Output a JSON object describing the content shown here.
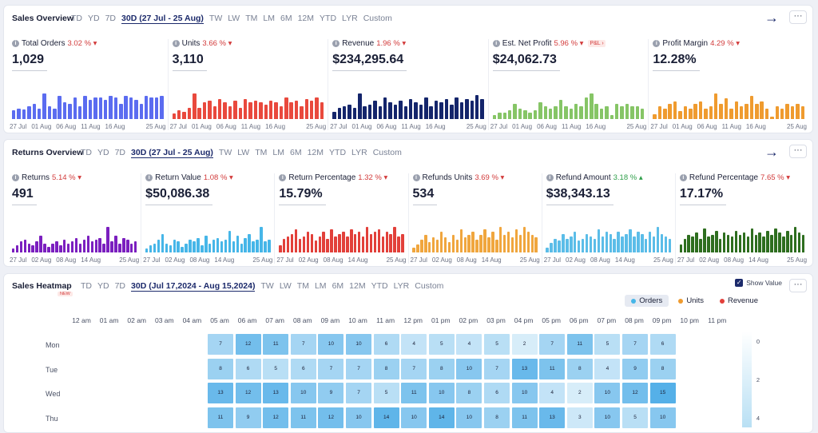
{
  "sales": {
    "title": "Sales Overview",
    "ranges": [
      "TD",
      "YD",
      "7D",
      "30D (27 Jul - 25 Aug)",
      "TW",
      "LW",
      "TM",
      "LM",
      "6M",
      "12M",
      "YTD",
      "LYR",
      "Custom"
    ],
    "active_range": 3,
    "arrow": "→",
    "more": "···",
    "x_ticks": [
      "27 Jul",
      "01 Aug",
      "06 Aug",
      "11 Aug",
      "16 Aug"
    ],
    "x_end": "25 Aug",
    "metrics": [
      {
        "label": "Total Orders",
        "change": "3.02 %",
        "dir": "down",
        "value": "1,029",
        "color": "#5b6cf0",
        "bars": [
          8,
          10,
          9,
          12,
          14,
          10,
          24,
          12,
          10,
          22,
          16,
          14,
          20,
          12,
          22,
          18,
          20,
          20,
          18,
          22,
          20,
          14,
          22,
          20,
          18,
          14,
          22,
          20,
          20,
          22
        ]
      },
      {
        "label": "Units",
        "change": "3.66 %",
        "dir": "down",
        "value": "3,110",
        "color": "#e9493d",
        "bars": [
          6,
          10,
          8,
          12,
          28,
          12,
          18,
          20,
          14,
          22,
          18,
          14,
          20,
          12,
          22,
          18,
          20,
          18,
          16,
          20,
          18,
          14,
          24,
          18,
          20,
          14,
          22,
          20,
          24,
          18
        ]
      },
      {
        "label": "Revenue",
        "change": "1.96 %",
        "dir": "down",
        "value": "$234,295.64",
        "color": "#14256b",
        "bars": [
          8,
          12,
          14,
          16,
          12,
          28,
          14,
          16,
          20,
          14,
          24,
          18,
          16,
          20,
          14,
          22,
          18,
          16,
          24,
          14,
          20,
          18,
          22,
          16,
          24,
          18,
          22,
          20,
          26,
          22
        ]
      },
      {
        "label": "Est. Net Profit",
        "change": "5.96 %",
        "dir": "down",
        "value": "$24,062.73",
        "color": "#86c566",
        "bars": [
          4,
          6,
          6,
          8,
          14,
          10,
          8,
          6,
          8,
          16,
          12,
          10,
          12,
          18,
          12,
          10,
          14,
          12,
          20,
          24,
          14,
          10,
          12,
          4,
          14,
          12,
          14,
          12,
          12,
          10
        ],
        "badge": "P&L ›"
      },
      {
        "label": "Profit Margin",
        "change": "4.29 %",
        "dir": "down",
        "value": "12.28%",
        "color": "#ef9b2f",
        "bars": [
          4,
          10,
          8,
          12,
          14,
          6,
          10,
          8,
          12,
          14,
          8,
          10,
          20,
          12,
          16,
          8,
          14,
          10,
          12,
          18,
          12,
          14,
          8,
          2,
          10,
          8,
          12,
          10,
          12,
          10
        ]
      }
    ]
  },
  "returns": {
    "title": "Returns Overview",
    "ranges": [
      "TD",
      "YD",
      "7D",
      "30D (27 Jul - 25 Aug)",
      "TW",
      "LW",
      "TM",
      "LM",
      "6M",
      "12M",
      "YTD",
      "LYR",
      "Custom"
    ],
    "active_range": 3,
    "arrow": "→",
    "more": "···",
    "x_ticks": [
      "27 Jul",
      "02 Aug",
      "08 Aug",
      "14 Aug"
    ],
    "x_end": "25 Aug",
    "metrics": [
      {
        "label": "Returns",
        "change": "5.14 %",
        "dir": "down",
        "value": "491",
        "color": "#7b1fbf",
        "bars": [
          4,
          8,
          12,
          14,
          10,
          8,
          12,
          18,
          10,
          6,
          10,
          12,
          8,
          14,
          10,
          12,
          16,
          10,
          14,
          18,
          12,
          14,
          16,
          10,
          28,
          12,
          18,
          10,
          16,
          14,
          10,
          12
        ]
      },
      {
        "label": "Return Value",
        "change": "1.08 %",
        "dir": "down",
        "value": "$50,086.38",
        "color": "#46b6e8",
        "bars": [
          4,
          8,
          10,
          14,
          20,
          10,
          8,
          14,
          12,
          6,
          10,
          14,
          12,
          16,
          8,
          18,
          10,
          14,
          16,
          12,
          14,
          24,
          12,
          18,
          10,
          16,
          20,
          12,
          14,
          28,
          12,
          14
        ]
      },
      {
        "label": "Return Percentage",
        "change": "1.32 %",
        "dir": "down",
        "value": "15.79%",
        "color": "#e2403a",
        "bars": [
          6,
          12,
          14,
          16,
          20,
          12,
          14,
          18,
          16,
          10,
          14,
          18,
          12,
          20,
          14,
          16,
          18,
          14,
          20,
          16,
          18,
          14,
          22,
          16,
          18,
          20,
          14,
          18,
          16,
          22,
          14,
          16
        ]
      },
      {
        "label": "Refunds Units",
        "change": "3.69 %",
        "dir": "down",
        "value": "534",
        "color": "#f0a63e",
        "bars": [
          4,
          6,
          10,
          14,
          8,
          12,
          10,
          16,
          12,
          8,
          14,
          10,
          18,
          12,
          14,
          16,
          10,
          14,
          18,
          12,
          16,
          10,
          20,
          14,
          16,
          12,
          18,
          14,
          20,
          16,
          14,
          12
        ]
      },
      {
        "label": "Refund Amount",
        "change": "3.18 %",
        "dir": "up",
        "value": "$38,343.13",
        "color": "#5bbde8",
        "bars": [
          4,
          8,
          12,
          10,
          16,
          12,
          14,
          18,
          10,
          12,
          16,
          14,
          12,
          20,
          14,
          18,
          16,
          12,
          18,
          14,
          16,
          20,
          14,
          18,
          16,
          12,
          18,
          14,
          22,
          16,
          14,
          12
        ]
      },
      {
        "label": "Refund Percentage",
        "change": "7.65 %",
        "dir": "down",
        "value": "17.17%",
        "color": "#2e6e1f",
        "bars": [
          8,
          14,
          18,
          16,
          20,
          14,
          24,
          16,
          18,
          22,
          14,
          20,
          18,
          16,
          22,
          18,
          20,
          16,
          24,
          18,
          20,
          16,
          22,
          18,
          24,
          20,
          16,
          22,
          18,
          26,
          20,
          18
        ]
      }
    ]
  },
  "heatmap": {
    "title": "Sales Heatmap",
    "ranges": [
      "TD",
      "YD",
      "7D",
      "30D (Jul 17,2024 - Aug 15,2024)",
      "TW",
      "LW",
      "TM",
      "LM",
      "6M",
      "12M",
      "YTD",
      "LYR",
      "Custom"
    ],
    "active_range": 3,
    "new_tag": "NEW",
    "show_value": "Show Value",
    "more": "···",
    "legend": [
      {
        "label": "Orders",
        "color": "#46b6e8",
        "active": true
      },
      {
        "label": "Units",
        "color": "#ef9b2f",
        "active": false
      },
      {
        "label": "Revenue",
        "color": "#e2403a",
        "active": false
      }
    ],
    "hours": [
      "12 am",
      "01 am",
      "02 am",
      "03 am",
      "04 am",
      "05 am",
      "06 am",
      "07 am",
      "08 am",
      "09 am",
      "10 am",
      "11 am",
      "12 pm",
      "01 pm",
      "02 pm",
      "03 pm",
      "04 pm",
      "05 pm",
      "06 pm",
      "07 pm",
      "08 pm",
      "09 pm",
      "10 pm",
      "11 pm"
    ],
    "days": [
      "Mon",
      "Tue",
      "Wed",
      "Thu"
    ],
    "values": [
      [
        null,
        null,
        null,
        null,
        null,
        7,
        12,
        11,
        7,
        10,
        10,
        6,
        4,
        5,
        4,
        5,
        2,
        7,
        11,
        5,
        7,
        6,
        null,
        null
      ],
      [
        null,
        null,
        null,
        null,
        null,
        8,
        6,
        5,
        6,
        7,
        7,
        8,
        7,
        8,
        10,
        7,
        13,
        11,
        8,
        4,
        9,
        8,
        null,
        null
      ],
      [
        null,
        null,
        null,
        null,
        null,
        13,
        12,
        13,
        10,
        9,
        7,
        5,
        11,
        10,
        8,
        6,
        10,
        4,
        2,
        10,
        12,
        15,
        null,
        null
      ],
      [
        null,
        null,
        null,
        null,
        null,
        11,
        9,
        12,
        11,
        12,
        10,
        14,
        10,
        14,
        10,
        8,
        11,
        13,
        3,
        10,
        5,
        10,
        null,
        null
      ]
    ],
    "scale_labels": [
      "0",
      "2",
      "4"
    ]
  }
}
